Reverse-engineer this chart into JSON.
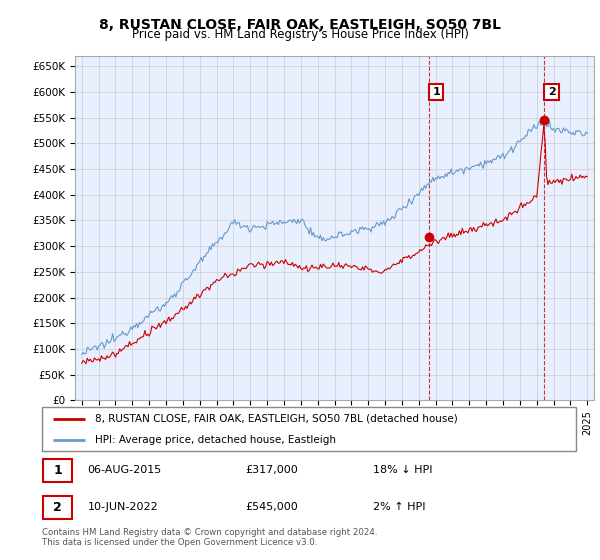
{
  "title": "8, RUSTAN CLOSE, FAIR OAK, EASTLEIGH, SO50 7BL",
  "subtitle": "Price paid vs. HM Land Registry's House Price Index (HPI)",
  "ylim": [
    0,
    670000
  ],
  "yticks": [
    0,
    50000,
    100000,
    150000,
    200000,
    250000,
    300000,
    350000,
    400000,
    450000,
    500000,
    550000,
    600000,
    650000
  ],
  "ytick_labels": [
    "£0",
    "£50K",
    "£100K",
    "£150K",
    "£200K",
    "£250K",
    "£300K",
    "£350K",
    "£400K",
    "£450K",
    "£500K",
    "£550K",
    "£600K",
    "£650K"
  ],
  "xlim_start": 1994.6,
  "xlim_end": 2025.4,
  "sale1_x": 2015.6,
  "sale1_y": 317000,
  "sale2_x": 2022.45,
  "sale2_y": 545000,
  "sale_color": "#cc0000",
  "hpi_color": "#6699cc",
  "grid_color": "#cccccc",
  "background_color": "#ffffff",
  "plot_bg_color": "#e8f0ff",
  "legend_label1": "8, RUSTAN CLOSE, FAIR OAK, EASTLEIGH, SO50 7BL (detached house)",
  "legend_label2": "HPI: Average price, detached house, Eastleigh",
  "annotation1_num": "1",
  "annotation1_date": "06-AUG-2015",
  "annotation1_price": "£317,000",
  "annotation1_hpi": "18% ↓ HPI",
  "annotation2_num": "2",
  "annotation2_date": "10-JUN-2022",
  "annotation2_price": "£545,000",
  "annotation2_hpi": "2% ↑ HPI",
  "footer": "Contains HM Land Registry data © Crown copyright and database right 2024.\nThis data is licensed under the Open Government Licence v3.0."
}
